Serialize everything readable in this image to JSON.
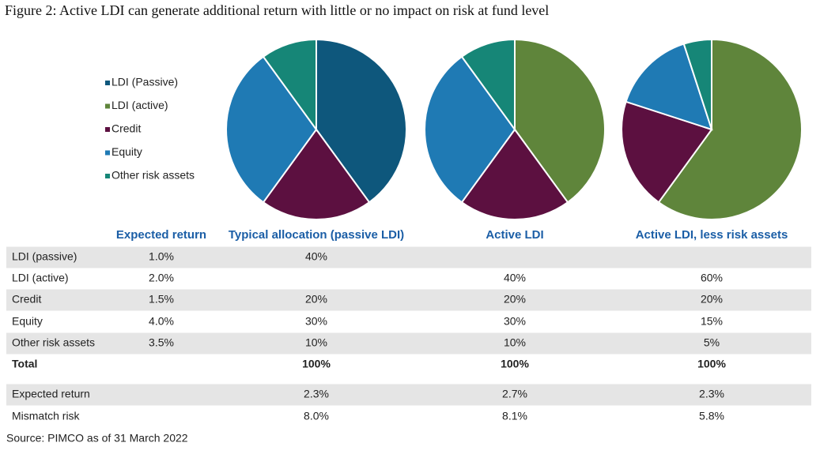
{
  "title": "Figure 2: Active LDI can generate additional return with little or no impact on risk at fund level",
  "legend": {
    "labels": [
      "LDI (Passive)",
      "LDI (active)",
      "Credit",
      "Equity",
      "Other risk assets"
    ],
    "colors": [
      "#0e577c",
      "#5f853b",
      "#5c1040",
      "#1f7ab4",
      "#168677"
    ]
  },
  "chart_data": [
    {
      "type": "pie",
      "values": [
        40,
        null,
        20,
        30,
        10
      ]
    },
    {
      "type": "pie",
      "values": [
        null,
        40,
        20,
        30,
        10
      ]
    },
    {
      "type": "pie",
      "values": [
        null,
        60,
        20,
        15,
        5
      ]
    }
  ],
  "table": {
    "header": [
      null,
      "Expected return",
      "Typical allocation (passive LDI)",
      "Active LDI",
      "Active LDI, less risk assets"
    ],
    "rows": [
      [
        "LDI (passive)",
        "1.0%",
        "40%",
        null,
        null
      ],
      [
        "LDI (active)",
        "2.0%",
        null,
        "40%",
        "60%"
      ],
      [
        "Credit",
        "1.5%",
        "20%",
        "20%",
        "20%"
      ],
      [
        "Equity",
        "4.0%",
        "30%",
        "30%",
        "15%"
      ],
      [
        "Other risk assets",
        "3.5%",
        "10%",
        "10%",
        "5%"
      ],
      [
        "Total",
        null,
        "100%",
        "100%",
        "100%"
      ],
      [
        "Expected return",
        null,
        "2.3%",
        "2.7%",
        "2.3%"
      ],
      [
        "Mismatch risk",
        null,
        "8.0%",
        "8.1%",
        "5.8%"
      ]
    ]
  },
  "source": "Source: PIMCO as of 31 March 2022"
}
